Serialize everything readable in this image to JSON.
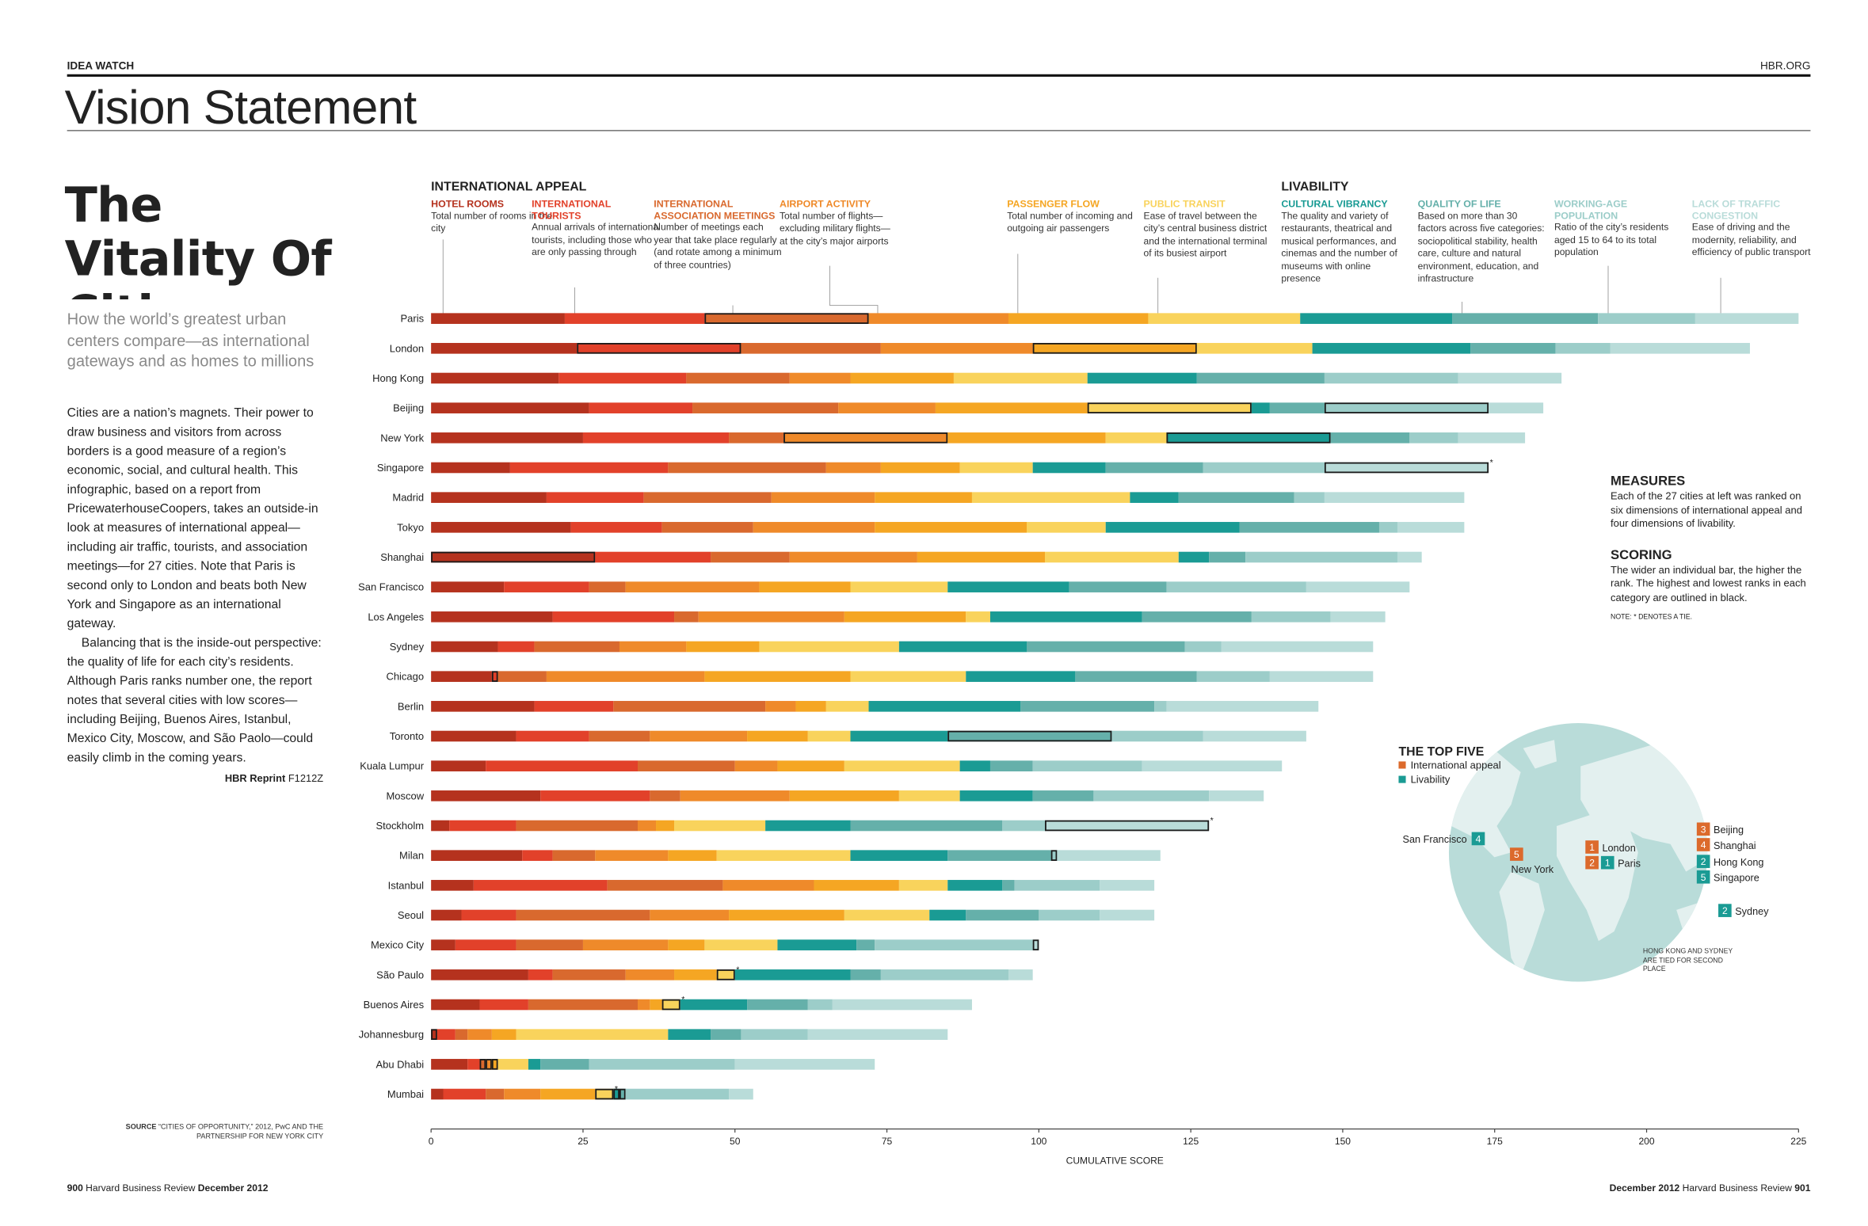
{
  "header": {
    "section": "IDEA WATCH",
    "site": "HBR.ORG",
    "title": "Vision Statement"
  },
  "article": {
    "headline": "The Vitality Of Cities",
    "deck": "How the world’s greatest urban centers compare—as international gateways and as homes to millions",
    "body": [
      "Cities are a nation’s magnets. Their power to draw business and visitors from across borders is a good measure of a region’s economic, social, and cultural health. This infographic, based on a report from PricewaterhouseCoopers, takes an outside-in look at measures of international appeal—including air traffic, tourists, and association meetings—for 27 cities. Note that Paris is second only to London and beats both New York and Singapore as an international gateway.",
      "Balancing that is the inside-out perspective: the quality of life for each city’s residents. Although Paris ranks number one, the report notes that several cities with low scores—including Beijing, Buenos Aires, Istanbul, Mexico City, Moscow, and São Paolo—could easily climb in the coming years."
    ],
    "reprint_label": "HBR Reprint",
    "reprint_code": "F1212Z",
    "source_label": "SOURCE",
    "source_text": "“CITIES OF OPPORTUNITY,” 2012, PwC AND THE PARTNERSHIP FOR NEW YORK CITY"
  },
  "sidebar": {
    "measures_title": "MEASURES",
    "measures_text": "Each of the 27 cities at left was ranked on six dimensions of international appeal and four dimensions of livability.",
    "scoring_title": "SCORING",
    "scoring_text": "The wider an individual bar, the higher the rank. The highest and lowest ranks in each category are outlined in black.",
    "note": "NOTE: * DENOTES A TIE."
  },
  "top_five": {
    "title": "THE TOP FIVE",
    "legend": [
      "International appeal",
      "Livability"
    ],
    "legend_colors": [
      "#dc6a2c",
      "#1a9b94"
    ],
    "items": [
      {
        "city": "San Francisco",
        "livability": 4
      },
      {
        "city": "New York",
        "appeal": 5
      },
      {
        "city": "London",
        "appeal": 1
      },
      {
        "city": "Paris",
        "appeal": 2,
        "livability": 1
      },
      {
        "city": "Beijing",
        "appeal": 3
      },
      {
        "city": "Shanghai",
        "appeal": 4
      },
      {
        "city": "Hong Kong",
        "livability": 2
      },
      {
        "city": "Singapore",
        "livability": 5
      },
      {
        "city": "Sydney",
        "livability": 2
      }
    ],
    "note": "HONG KONG AND SYDNEY ARE TIED FOR SECOND PLACE"
  },
  "footer": {
    "left_page": "900",
    "left_text": "Harvard Business Review",
    "left_date": "December 2012",
    "right_date": "December 2012",
    "right_text": "Harvard Business Review",
    "right_page": "901"
  },
  "chart_data": {
    "type": "stacked-bar-horizontal",
    "groups": [
      "INTERNATIONAL APPEAL",
      "LIVABILITY"
    ],
    "xlabel": "CUMULATIVE SCORE",
    "xlim": [
      0,
      225
    ],
    "xticks": [
      0,
      25,
      50,
      75,
      100,
      125,
      150,
      175,
      200,
      225
    ],
    "tie_symbol": "*",
    "categories": [
      "Paris",
      "London",
      "Hong Kong",
      "Beijing",
      "New York",
      "Singapore",
      "Madrid",
      "Tokyo",
      "Shanghai",
      "San Francisco",
      "Los Angeles",
      "Sydney",
      "Chicago",
      "Berlin",
      "Toronto",
      "Kuala Lumpur",
      "Moscow",
      "Stockholm",
      "Milan",
      "Istanbul",
      "Seoul",
      "Mexico City",
      "São Paulo",
      "Buenos Aires",
      "Johannesburg",
      "Abu Dhabi",
      "Mumbai"
    ],
    "series": [
      {
        "name": "HOTEL ROOMS",
        "color": "#b5321e",
        "description": "Total number of rooms in the city",
        "outlined": [
          8,
          24
        ],
        "tied": [],
        "values": [
          22,
          24,
          21,
          26,
          25,
          13,
          19,
          23,
          27,
          12,
          20,
          11,
          10,
          17,
          14,
          9,
          18,
          3,
          15,
          7,
          5,
          4,
          16,
          8,
          1,
          6,
          2
        ]
      },
      {
        "name": "INTERNATIONAL TOURISTS",
        "color": "#e2412a",
        "description": "Annual arrivals of international tourists, including those who are only passing through",
        "outlined": [
          1,
          12
        ],
        "tied": [],
        "values": [
          23,
          27,
          21,
          17,
          24,
          26,
          16,
          15,
          19,
          14,
          20,
          6,
          1,
          13,
          12,
          25,
          18,
          11,
          5,
          22,
          9,
          10,
          4,
          8,
          3,
          2,
          7
        ]
      },
      {
        "name": "INTERNATIONAL ASSOCIATION MEETINGS",
        "color": "#d9692e",
        "description": "Number of meetings each year that take place regularly (and rotate among a minimum of three countries)",
        "outlined": [
          0,
          25
        ],
        "tied": [],
        "values": [
          27,
          23,
          17,
          24,
          9,
          26,
          21,
          15,
          13,
          6,
          4,
          14,
          8,
          25,
          10,
          16,
          5,
          20,
          7,
          19,
          22,
          11,
          12,
          18,
          2,
          1,
          3
        ]
      },
      {
        "name": "AIRPORT ACTIVITY",
        "color": "#ef8a2a",
        "description": "Total number of flights—excluding military flights—at the city’s major airports",
        "outlined": [
          4,
          25
        ],
        "tied": [],
        "values": [
          23,
          25,
          10,
          16,
          27,
          9,
          17,
          20,
          21,
          22,
          24,
          11,
          26,
          5,
          16,
          7,
          18,
          3,
          12,
          15,
          13,
          14,
          8,
          2,
          4,
          1,
          6
        ]
      },
      {
        "name": "PASSENGER FLOW",
        "color": "#f5a623",
        "description": "Total number of incoming and outgoing air passengers",
        "outlined": [
          1,
          25
        ],
        "tied": [],
        "values": [
          23,
          27,
          17,
          25,
          26,
          13,
          16,
          25,
          21,
          15,
          20,
          12,
          24,
          5,
          10,
          11,
          18,
          3,
          8,
          14,
          19,
          6,
          7,
          2,
          4,
          1,
          9
        ]
      },
      {
        "name": "PUBLIC TRANSIT",
        "color": "#f9d35c",
        "description": "Ease of travel between the city’s central business district and the international terminal of its busiest airport",
        "outlined": [
          3,
          22,
          23,
          26
        ],
        "tied": [
          22,
          23,
          26
        ],
        "values": [
          25,
          19,
          22,
          27,
          10,
          12,
          26,
          13,
          22,
          16,
          4,
          23,
          19,
          7,
          7,
          19,
          10,
          15,
          22,
          8,
          14,
          12,
          3,
          3,
          25,
          5,
          3
        ]
      },
      {
        "name": "CULTURAL VIBRANCY",
        "color": "#1a9b94",
        "description": "The quality and variety of restaurants, theatrical and musical performances, and cinemas and the number of museums with online presence",
        "outlined": [
          4,
          26
        ],
        "tied": [],
        "values": [
          25,
          26,
          18,
          3,
          27,
          12,
          8,
          22,
          5,
          20,
          25,
          21,
          18,
          25,
          16,
          5,
          12,
          14,
          16,
          9,
          6,
          13,
          19,
          11,
          7,
          2,
          1
        ]
      },
      {
        "name": "QUALITY OF LIFE",
        "color": "#65b0aa",
        "description": "Based on more than 30 factors across five categories: sociopolitical stability, health care, culture and natural environment, education, and infrastructure",
        "outlined": [
          14,
          26
        ],
        "tied": [],
        "values": [
          24,
          14,
          21,
          9,
          13,
          16,
          19,
          23,
          6,
          16,
          18,
          26,
          20,
          22,
          27,
          7,
          10,
          25,
          17,
          2,
          12,
          3,
          5,
          10,
          5,
          8,
          1
        ]
      },
      {
        "name": "WORKING-AGE POPULATION",
        "color": "#9ccdc9",
        "description": "Ratio of the city’s residents aged 15 to 64 to its total population",
        "outlined": [
          3,
          18
        ],
        "tied": [],
        "values": [
          16,
          9,
          22,
          27,
          8,
          20,
          5,
          3,
          25,
          23,
          13,
          6,
          12,
          2,
          15,
          18,
          19,
          7,
          1,
          14,
          10,
          26,
          21,
          4,
          11,
          24,
          17
        ]
      },
      {
        "name": "LACK OF TRAFFIC CONGESTION",
        "color": "#b9dcd9",
        "description": "Ease of driving and the modernity, reliability, and efficiency of public transport",
        "outlined": [
          5,
          17,
          21
        ],
        "tied": [
          5,
          17
        ],
        "values": [
          17,
          23,
          17,
          9,
          11,
          27,
          23,
          11,
          4,
          17,
          9,
          25,
          17,
          25,
          17,
          23,
          9,
          27,
          17,
          9,
          9,
          1,
          4,
          23,
          23,
          23,
          4
        ]
      }
    ]
  }
}
